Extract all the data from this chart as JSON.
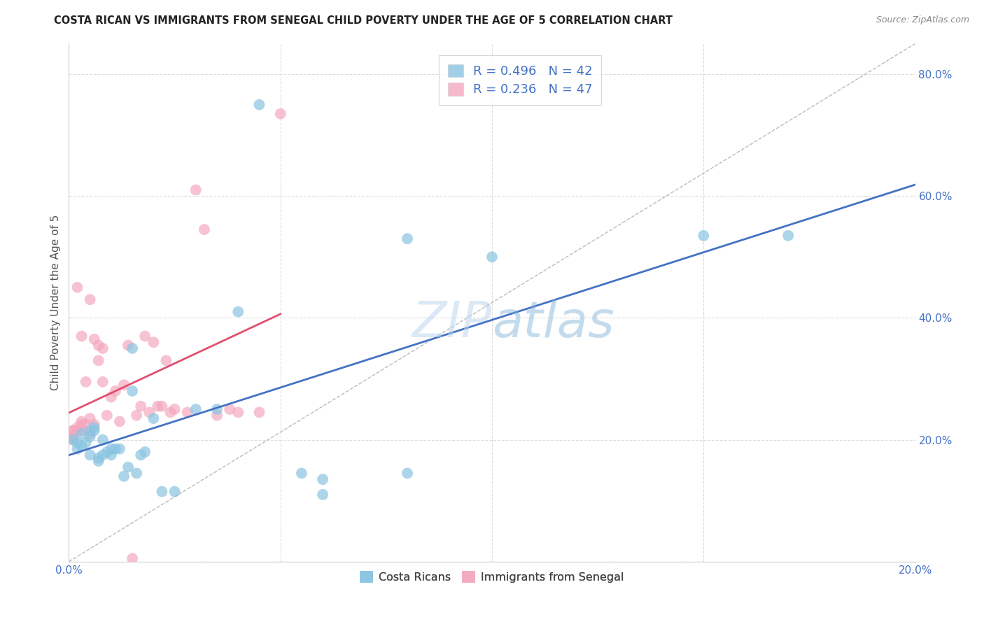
{
  "title": "COSTA RICAN VS IMMIGRANTS FROM SENEGAL CHILD POVERTY UNDER THE AGE OF 5 CORRELATION CHART",
  "source": "Source: ZipAtlas.com",
  "ylabel": "Child Poverty Under the Age of 5",
  "legend_label1": "Costa Ricans",
  "legend_label2": "Immigrants from Senegal",
  "r1": 0.496,
  "n1": 42,
  "r2": 0.236,
  "n2": 47,
  "color_blue": "#89c4e1",
  "color_pink": "#f4a8be",
  "color_blue_line": "#4472c4",
  "color_pink_line": "#e05070",
  "color_diag": "#bbbbbb",
  "xlim": [
    0.0,
    0.2
  ],
  "ylim": [
    0.0,
    0.85
  ],
  "xticks": [
    0.0,
    0.05,
    0.1,
    0.15,
    0.2
  ],
  "yticks": [
    0.0,
    0.2,
    0.4,
    0.6,
    0.8
  ],
  "blue_x": [
    0.001,
    0.002,
    0.002,
    0.003,
    0.003,
    0.004,
    0.005,
    0.005,
    0.005,
    0.006,
    0.006,
    0.007,
    0.007,
    0.008,
    0.008,
    0.009,
    0.01,
    0.01,
    0.011,
    0.012,
    0.013,
    0.014,
    0.015,
    0.015,
    0.016,
    0.017,
    0.018,
    0.02,
    0.022,
    0.025,
    0.03,
    0.035,
    0.04,
    0.045,
    0.055,
    0.06,
    0.06,
    0.08,
    0.08,
    0.1,
    0.15,
    0.17
  ],
  "blue_y": [
    0.2,
    0.185,
    0.195,
    0.19,
    0.21,
    0.195,
    0.205,
    0.215,
    0.175,
    0.215,
    0.22,
    0.17,
    0.165,
    0.175,
    0.2,
    0.18,
    0.185,
    0.175,
    0.185,
    0.185,
    0.14,
    0.155,
    0.28,
    0.35,
    0.145,
    0.175,
    0.18,
    0.235,
    0.115,
    0.115,
    0.25,
    0.25,
    0.41,
    0.75,
    0.145,
    0.11,
    0.135,
    0.145,
    0.53,
    0.5,
    0.535,
    0.535
  ],
  "pink_x": [
    0.001,
    0.001,
    0.001,
    0.001,
    0.002,
    0.002,
    0.002,
    0.003,
    0.003,
    0.003,
    0.003,
    0.004,
    0.004,
    0.005,
    0.005,
    0.005,
    0.006,
    0.006,
    0.007,
    0.007,
    0.008,
    0.008,
    0.009,
    0.01,
    0.011,
    0.012,
    0.013,
    0.014,
    0.015,
    0.016,
    0.017,
    0.018,
    0.019,
    0.02,
    0.021,
    0.022,
    0.023,
    0.024,
    0.025,
    0.028,
    0.03,
    0.032,
    0.035,
    0.038,
    0.04,
    0.045,
    0.05
  ],
  "pink_y": [
    0.2,
    0.215,
    0.215,
    0.205,
    0.215,
    0.22,
    0.45,
    0.215,
    0.225,
    0.23,
    0.37,
    0.225,
    0.295,
    0.235,
    0.21,
    0.43,
    0.365,
    0.225,
    0.33,
    0.355,
    0.295,
    0.35,
    0.24,
    0.27,
    0.28,
    0.23,
    0.29,
    0.355,
    0.005,
    0.24,
    0.255,
    0.37,
    0.245,
    0.36,
    0.255,
    0.255,
    0.33,
    0.245,
    0.25,
    0.245,
    0.61,
    0.545,
    0.24,
    0.25,
    0.245,
    0.245,
    0.735
  ],
  "background_color": "#ffffff",
  "grid_color": "#dddddd"
}
